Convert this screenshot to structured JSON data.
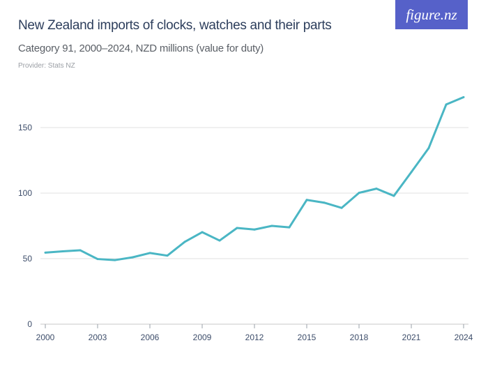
{
  "header": {
    "title": "New Zealand imports of clocks, watches and their parts",
    "subtitle": "Category 91, 2000–2024, NZD millions (value for duty)",
    "provider": "Provider: Stats NZ",
    "logo": "figure.nz"
  },
  "colors": {
    "line": "#4ab6c4",
    "grid": "#e2e2e2",
    "logo_bg": "#5661c9"
  },
  "chart_data": {
    "type": "line",
    "title": "New Zealand imports of clocks, watches and their parts",
    "xlabel": "",
    "ylabel": "",
    "x": [
      2000,
      2001,
      2002,
      2003,
      2004,
      2005,
      2006,
      2007,
      2008,
      2009,
      2010,
      2011,
      2012,
      2013,
      2014,
      2015,
      2016,
      2017,
      2018,
      2019,
      2020,
      2021,
      2022,
      2023,
      2024
    ],
    "series": [
      {
        "values": [
          54.6,
          55.6,
          56.4,
          49.7,
          48.9,
          51.0,
          54.3,
          52.3,
          62.8,
          70.2,
          63.8,
          73.4,
          72.2,
          75.0,
          73.9,
          94.8,
          92.7,
          88.7,
          100.2,
          103.4,
          97.9,
          116.0,
          134.4,
          167.6,
          173.2
        ]
      }
    ],
    "xticks": [
      "2000",
      "2003",
      "2006",
      "2009",
      "2012",
      "2015",
      "2018",
      "2021",
      "2024"
    ],
    "yticks": [
      "0",
      "50",
      "100",
      "150"
    ],
    "xlim": [
      2000,
      2024
    ],
    "ylim": [
      0,
      180
    ],
    "grid": true,
    "legend": "none"
  }
}
